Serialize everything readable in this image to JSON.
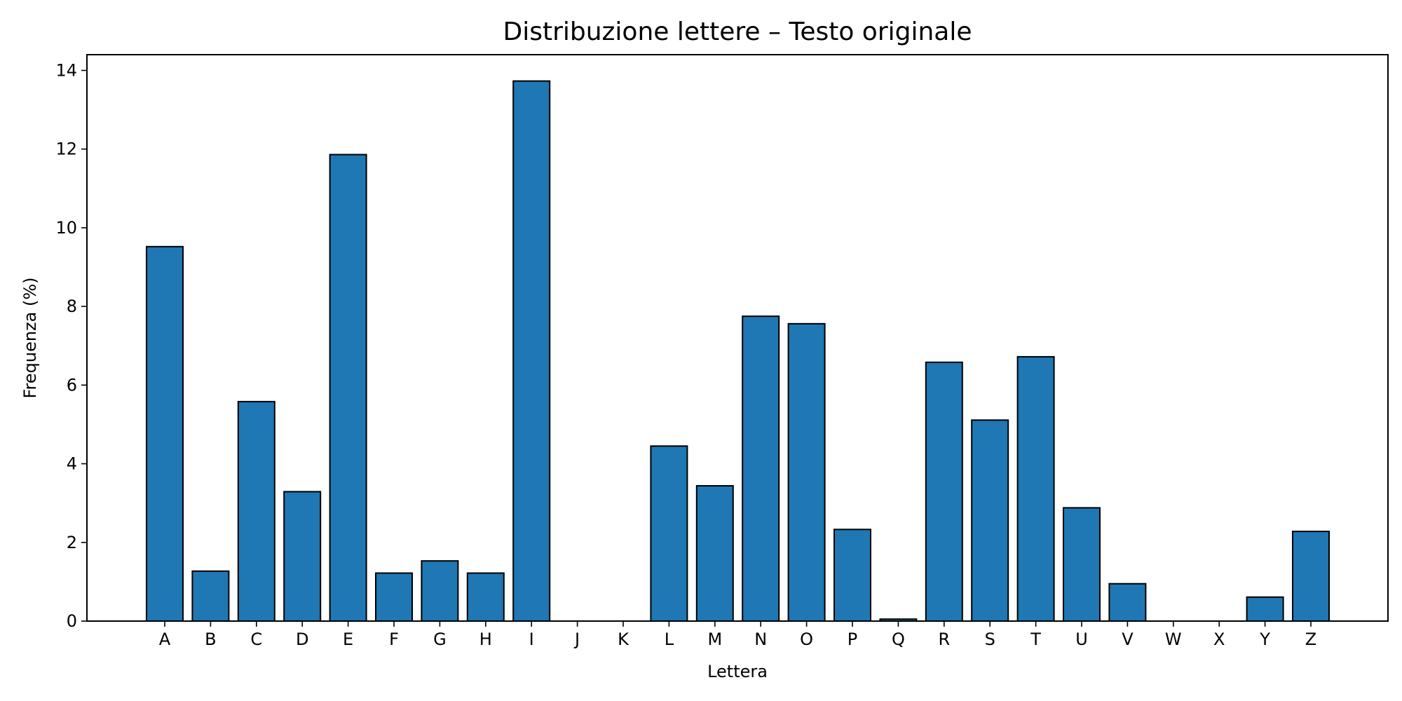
{
  "chart_data": {
    "type": "bar",
    "title": "Distribuzione lettere – Testo originale",
    "xlabel": "Lettera",
    "ylabel": "Frequenza (%)",
    "categories": [
      "A",
      "B",
      "C",
      "D",
      "E",
      "F",
      "G",
      "H",
      "I",
      "J",
      "K",
      "L",
      "M",
      "N",
      "O",
      "P",
      "Q",
      "R",
      "S",
      "T",
      "U",
      "V",
      "W",
      "X",
      "Y",
      "Z"
    ],
    "values": [
      9.52,
      1.27,
      5.58,
      3.29,
      11.86,
      1.22,
      1.53,
      1.22,
      13.73,
      0,
      0,
      4.45,
      3.44,
      7.75,
      7.56,
      2.33,
      0.05,
      6.58,
      5.11,
      6.72,
      2.88,
      0.95,
      0,
      0,
      0.61,
      2.28
    ],
    "ylim": [
      0,
      14.4
    ],
    "yticks": [
      0,
      2,
      4,
      6,
      8,
      10,
      12,
      14
    ],
    "bar_color": "#1f77b4",
    "edge_color": "#000000",
    "grid": false,
    "legend": false
  }
}
